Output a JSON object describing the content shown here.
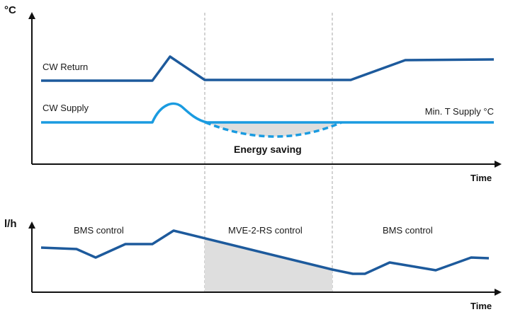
{
  "colors": {
    "dark_blue": "#1d5a9c",
    "light_blue": "#1a9be0",
    "shade": "#dedede",
    "axis": "#111111",
    "divider": "#a6a6a6"
  },
  "top_chart": {
    "y_unit": "°C",
    "x_label": "Time",
    "return_label": "CW Return",
    "supply_label": "CW Supply",
    "min_supply_label": "Min. T Supply °C",
    "saving_label": "Energy saving"
  },
  "bottom_chart": {
    "y_unit": "l/h",
    "x_label": "Time",
    "zone_left": "BMS control",
    "zone_middle": "MVE-2-RS control",
    "zone_right": "BMS control"
  }
}
